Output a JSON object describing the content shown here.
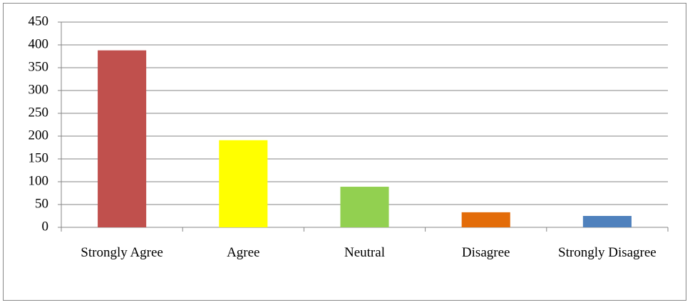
{
  "chart_data": {
    "type": "bar",
    "categories": [
      "Strongly Agree",
      "Agree",
      "Neutral",
      "Disagree",
      "Strongly Disagree"
    ],
    "values": [
      388,
      191,
      89,
      33,
      25
    ],
    "colors": [
      "#c0504d",
      "#ffff00",
      "#92d050",
      "#e36c09",
      "#4f81bd"
    ],
    "ylim": [
      0,
      450
    ],
    "yticks": [
      0,
      50,
      100,
      150,
      200,
      250,
      300,
      350,
      400,
      450
    ],
    "grid": true
  }
}
